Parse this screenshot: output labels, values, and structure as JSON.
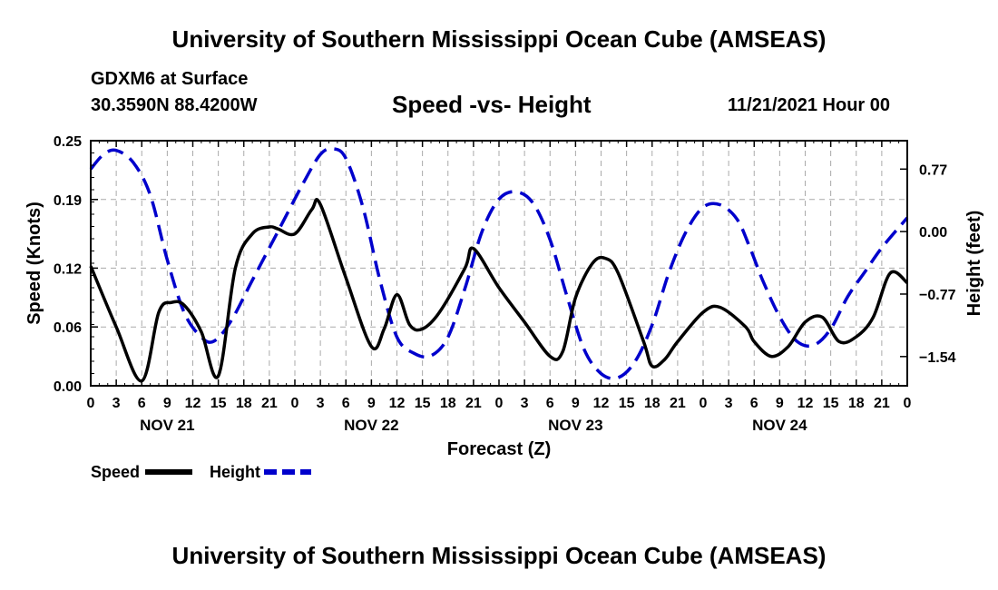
{
  "header": {
    "title": "University of Southern Mississippi Ocean Cube (AMSEAS)",
    "station": "GDXM6 at Surface",
    "coords": "30.3590N  88.4200W",
    "subtitle": "Speed -vs- Height",
    "datetime": "11/21/2021 Hour 00"
  },
  "footer": {
    "title": "University of Southern Mississippi Ocean Cube (AMSEAS)"
  },
  "colors": {
    "speed": "#000000",
    "height": "#0000cc",
    "grid": "#aaaaaa"
  },
  "chart_data": {
    "type": "line",
    "title": "Speed -vs- Height",
    "xlabel": "Forecast (Z)",
    "ylabel": "Speed (Knots)",
    "y2label": "Height (feet)",
    "xlim": [
      0,
      96
    ],
    "ylim": [
      0,
      0.25
    ],
    "y2lim": [
      -1.9,
      1.12
    ],
    "x_ticks": [
      0,
      3,
      6,
      9,
      12,
      15,
      18,
      21,
      24,
      27,
      30,
      33,
      36,
      39,
      42,
      45,
      48,
      51,
      54,
      57,
      60,
      63,
      66,
      69,
      72,
      75,
      78,
      81,
      84,
      87,
      90,
      93,
      96
    ],
    "x_tick_labels": [
      "0",
      "3",
      "6",
      "9",
      "12",
      "15",
      "18",
      "21",
      "0",
      "3",
      "6",
      "9",
      "12",
      "15",
      "18",
      "21",
      "0",
      "3",
      "6",
      "9",
      "12",
      "15",
      "18",
      "21",
      "0",
      "3",
      "6",
      "9",
      "12",
      "15",
      "18",
      "21",
      "0"
    ],
    "y_ticks": [
      0.0,
      0.06,
      0.12,
      0.19,
      0.25
    ],
    "y_tick_labels": [
      "0.00",
      "0.06",
      "0.12",
      "0.19",
      "0.25"
    ],
    "y2_ticks": [
      0.77,
      0.0,
      -0.77,
      -1.54
    ],
    "y2_tick_labels": [
      "0.77",
      "0.00",
      "−0.77",
      "−1.54"
    ],
    "date_labels": [
      {
        "x": 9,
        "label": "NOV 21"
      },
      {
        "x": 33,
        "label": "NOV 22"
      },
      {
        "x": 57,
        "label": "NOV 23"
      },
      {
        "x": 81,
        "label": "NOV 24"
      }
    ],
    "legend": [
      {
        "name": "Speed",
        "style": "solid"
      },
      {
        "name": "Height",
        "style": "dashed"
      }
    ],
    "series": [
      {
        "name": "Speed",
        "axis": "left",
        "x": [
          0,
          3,
          6,
          8,
          9.5,
          11,
          13,
          15,
          17,
          19,
          21,
          22,
          24,
          26,
          27,
          30,
          33,
          34.5,
          36,
          37.5,
          39,
          41,
          44,
          45,
          48,
          51,
          54,
          55.5,
          57,
          59,
          60.5,
          62,
          65,
          66,
          67.5,
          69,
          72,
          74,
          77,
          78,
          80,
          82,
          84,
          86,
          88,
          90,
          92,
          94,
          96
        ],
        "y": [
          0.122,
          0.06,
          0.005,
          0.075,
          0.085,
          0.082,
          0.055,
          0.01,
          0.12,
          0.155,
          0.162,
          0.16,
          0.155,
          0.18,
          0.185,
          0.11,
          0.04,
          0.058,
          0.093,
          0.062,
          0.058,
          0.075,
          0.12,
          0.14,
          0.1,
          0.065,
          0.03,
          0.035,
          0.09,
          0.125,
          0.13,
          0.115,
          0.045,
          0.02,
          0.027,
          0.045,
          0.075,
          0.08,
          0.06,
          0.045,
          0.03,
          0.04,
          0.065,
          0.07,
          0.045,
          0.05,
          0.07,
          0.115,
          0.105
        ]
      },
      {
        "name": "Height",
        "axis": "right",
        "x": [
          0,
          1.5,
          3,
          5,
          7,
          9,
          11,
          13,
          14.5,
          16.5,
          19,
          22,
          25,
          27,
          28.5,
          30,
          32,
          34,
          36,
          38,
          40,
          42,
          44,
          46,
          48,
          50,
          52,
          54,
          56,
          58,
          60,
          62,
          64,
          66,
          68,
          70,
          72,
          74,
          76,
          77.5,
          79,
          81,
          83,
          85,
          87,
          89,
          91,
          93,
          96
        ],
        "y": [
          0.77,
          0.95,
          1.0,
          0.85,
          0.45,
          -0.35,
          -1.0,
          -1.3,
          -1.35,
          -1.1,
          -0.6,
          0.0,
          0.6,
          0.95,
          1.02,
          0.9,
          0.3,
          -0.6,
          -1.3,
          -1.5,
          -1.53,
          -1.3,
          -0.7,
          0.0,
          0.4,
          0.49,
          0.35,
          -0.1,
          -0.8,
          -1.45,
          -1.75,
          -1.8,
          -1.6,
          -1.15,
          -0.5,
          0.0,
          0.3,
          0.33,
          0.15,
          -0.2,
          -0.6,
          -1.05,
          -1.35,
          -1.4,
          -1.2,
          -0.8,
          -0.5,
          -0.2,
          0.17
        ]
      }
    ]
  }
}
